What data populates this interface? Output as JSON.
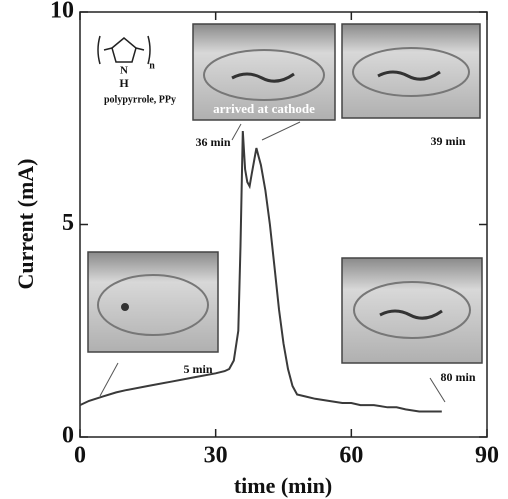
{
  "chart_data": {
    "type": "line",
    "xlabel": "time (min)",
    "ylabel": "Current (mA)",
    "x": [
      0,
      2,
      5,
      8,
      10,
      15,
      20,
      25,
      30,
      32,
      33,
      34,
      35,
      35.5,
      36,
      36.5,
      37,
      37.5,
      38,
      38.5,
      39,
      39.5,
      40,
      41,
      42,
      43,
      44,
      45,
      46,
      47,
      48,
      50,
      52,
      55,
      58,
      60,
      62,
      65,
      68,
      70,
      72,
      75,
      78,
      80
    ],
    "values": [
      0.75,
      0.85,
      0.95,
      1.05,
      1.1,
      1.2,
      1.3,
      1.4,
      1.5,
      1.55,
      1.6,
      1.8,
      2.5,
      4.5,
      7.2,
      6.3,
      6.0,
      5.9,
      6.2,
      6.5,
      6.8,
      6.6,
      6.4,
      5.8,
      5.0,
      4.0,
      3.0,
      2.2,
      1.6,
      1.2,
      1.0,
      0.95,
      0.9,
      0.85,
      0.8,
      0.8,
      0.75,
      0.75,
      0.7,
      0.7,
      0.65,
      0.6,
      0.6,
      0.6
    ],
    "color": "#3a3a3a",
    "xlim": [
      0,
      90
    ],
    "xticks": [
      0,
      30,
      60,
      90
    ],
    "ylim": [
      0,
      10
    ],
    "yticks": [
      0,
      5,
      10
    ],
    "annotations": [
      "36 min",
      "39 min",
      "5 min",
      "80 min",
      "arrived at cathode"
    ],
    "structure_labels": [
      "N",
      "H",
      "n",
      "polypyrrole, PPy"
    ]
  }
}
